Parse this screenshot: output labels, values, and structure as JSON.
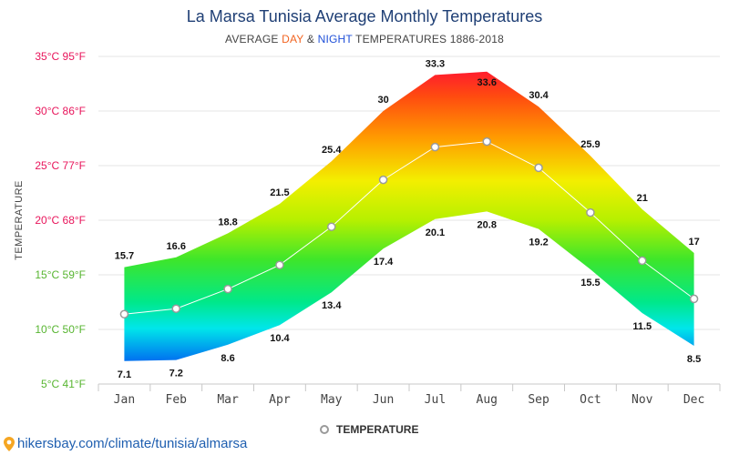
{
  "header": {
    "title": "La Marsa Tunisia Average Monthly Temperatures",
    "subtitle_prefix": "AVERAGE",
    "subtitle_day": "DAY",
    "subtitle_amp": "&",
    "subtitle_night": "NIGHT",
    "subtitle_suffix": "TEMPERATURES 1886-2018"
  },
  "footer": {
    "source": "hikersbay.com/climate/tunisia/almarsa"
  },
  "colors": {
    "day_accent": "#f26522",
    "night_accent": "#1e4fd8",
    "title": "#1f3f75",
    "grid": "#e6e6e6",
    "mean_line": "#ffffff"
  },
  "chart_data": {
    "type": "area",
    "title": "La Marsa Tunisia Average Monthly Temperatures",
    "subtitle": "AVERAGE DAY & NIGHT TEMPERATURES 1886-2018",
    "ylabel": "TEMPERATURE",
    "xlabel": "",
    "categories": [
      "Jan",
      "Feb",
      "Mar",
      "Apr",
      "May",
      "Jun",
      "Jul",
      "Aug",
      "Sep",
      "Oct",
      "Nov",
      "Dec"
    ],
    "ylim": [
      5,
      35
    ],
    "yticks": [
      {
        "value": 35,
        "label": "35°C 95°F",
        "color": "#e8155b"
      },
      {
        "value": 30,
        "label": "30°C 86°F",
        "color": "#e8155b"
      },
      {
        "value": 25,
        "label": "25°C 77°F",
        "color": "#e8155b"
      },
      {
        "value": 20,
        "label": "20°C 68°F",
        "color": "#e8155b"
      },
      {
        "value": 15,
        "label": "15°C 59°F",
        "color": "#57b530"
      },
      {
        "value": 10,
        "label": "10°C 50°F",
        "color": "#57b530"
      },
      {
        "value": 5,
        "label": "5°C 41°F",
        "color": "#57b530"
      }
    ],
    "grid": true,
    "legend_position": "bottom-center",
    "series": [
      {
        "name": "",
        "role": "day",
        "values": [
          15.7,
          16.6,
          18.8,
          21.5,
          25.4,
          30,
          33.3,
          33.6,
          30.4,
          25.9,
          21,
          17
        ]
      },
      {
        "name": "",
        "role": "night",
        "values": [
          7.1,
          7.2,
          8.6,
          10.4,
          13.4,
          17.4,
          20.1,
          20.8,
          19.2,
          15.5,
          11.5,
          8.5
        ]
      },
      {
        "name": "TEMPERATURE",
        "role": "mean",
        "values": [
          11.4,
          11.9,
          13.7,
          15.9,
          19.4,
          23.7,
          26.7,
          27.2,
          24.8,
          20.7,
          16.3,
          12.8
        ]
      }
    ]
  }
}
